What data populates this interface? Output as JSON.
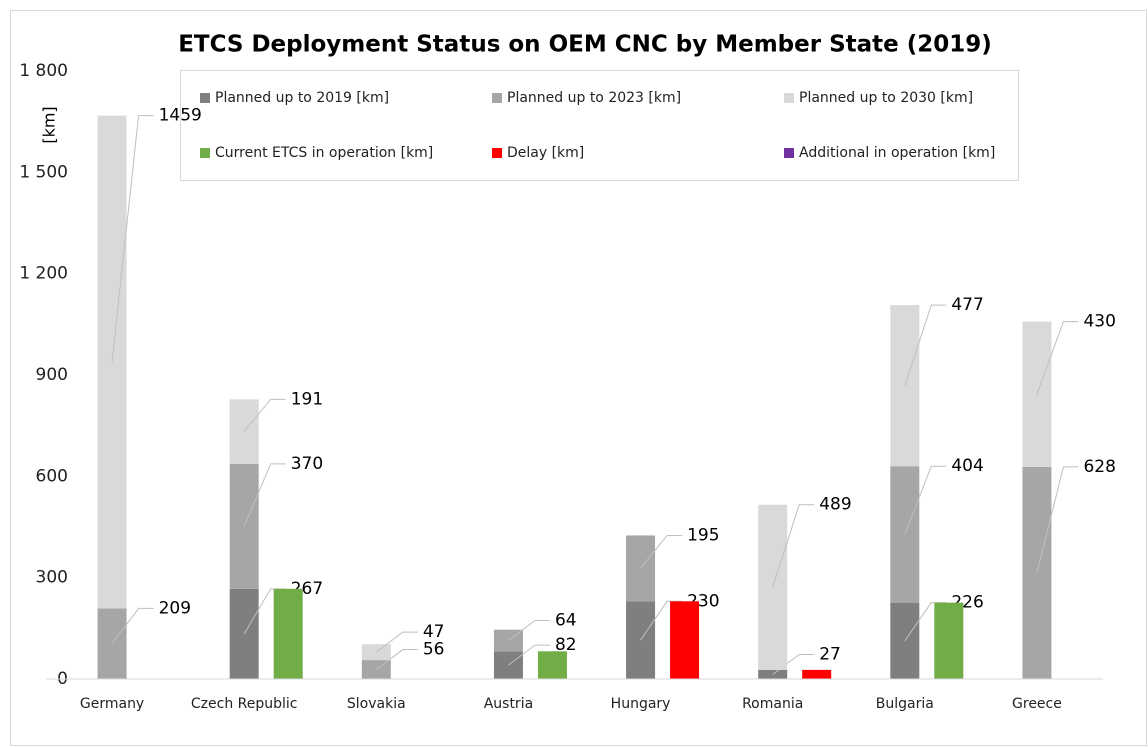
{
  "chart_data": {
    "type": "bar",
    "title": "ETCS Deployment Status on OEM CNC by Member State (2019)",
    "y_label": "[km]",
    "categories": [
      "Germany",
      "Czech Republic",
      "Slovakia",
      "Austria",
      "Hungary",
      "Romania",
      "Bulgaria",
      "Greece"
    ],
    "series": [
      {
        "name": "Planned up to 2019 [km]",
        "color": "#7f7f7f",
        "stack": "planned",
        "values": [
          null,
          267,
          null,
          82,
          230,
          27,
          226,
          null
        ]
      },
      {
        "name": "Planned up to 2023 [km]",
        "color": "#a6a6a6",
        "stack": "planned",
        "values": [
          209,
          370,
          56,
          64,
          195,
          null,
          404,
          628
        ]
      },
      {
        "name": "Planned up to 2030 [km]",
        "color": "#d9d9d9",
        "stack": "planned",
        "values": [
          1459,
          191,
          47,
          null,
          null,
          489,
          477,
          430
        ]
      },
      {
        "name": "Current ETCS in operation [km]",
        "color": "#70ad47",
        "stack": "operation",
        "values": [
          null,
          267,
          null,
          82,
          null,
          null,
          226,
          null
        ]
      },
      {
        "name": "Delay [km]",
        "color": "#ff0000",
        "stack": "operation",
        "values": [
          null,
          null,
          null,
          null,
          230,
          27,
          null,
          null
        ]
      },
      {
        "name": "Additional in operation [km]",
        "color": "#7030a0",
        "stack": "operation",
        "values": [
          null,
          null,
          null,
          null,
          null,
          null,
          null,
          null
        ]
      }
    ],
    "ylim": [
      0,
      1800
    ],
    "yticks": [
      0,
      300,
      600,
      900,
      {
        "value": 1200,
        "label": "1 200"
      },
      {
        "value": 1500,
        "label": "1 500"
      },
      {
        "value": 1800,
        "label": "1 800"
      }
    ],
    "stacked": true,
    "grid": false,
    "legend": "top"
  }
}
